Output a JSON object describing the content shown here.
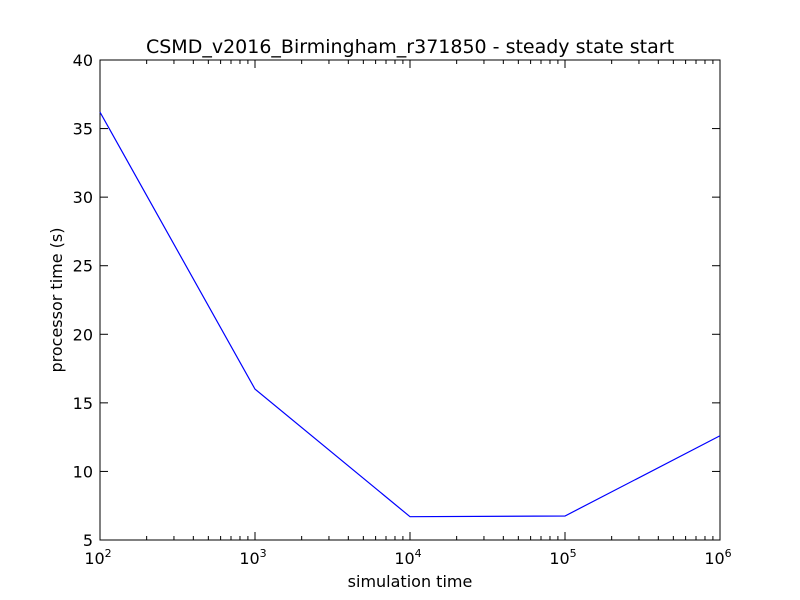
{
  "chart_data": {
    "type": "line",
    "title": "CSMD_v2016_Birmingham_r371850 - steady state start",
    "xlabel": "simulation time",
    "ylabel": "processor time (s)",
    "xscale": "log",
    "xlim": [
      100,
      1000000
    ],
    "ylim": [
      5,
      40
    ],
    "x_ticks": [
      {
        "value": 100,
        "base": "10",
        "exp": "2"
      },
      {
        "value": 1000,
        "base": "10",
        "exp": "3"
      },
      {
        "value": 10000,
        "base": "10",
        "exp": "4"
      },
      {
        "value": 100000,
        "base": "10",
        "exp": "5"
      },
      {
        "value": 1000000,
        "base": "10",
        "exp": "6"
      }
    ],
    "y_ticks": [
      5,
      10,
      15,
      20,
      25,
      30,
      35,
      40
    ],
    "grid": false,
    "series": [
      {
        "color": "#0000ff",
        "x": [
          100,
          1000,
          10000,
          100000,
          1000000
        ],
        "y": [
          36.2,
          16.0,
          6.7,
          6.75,
          12.6
        ]
      }
    ]
  }
}
